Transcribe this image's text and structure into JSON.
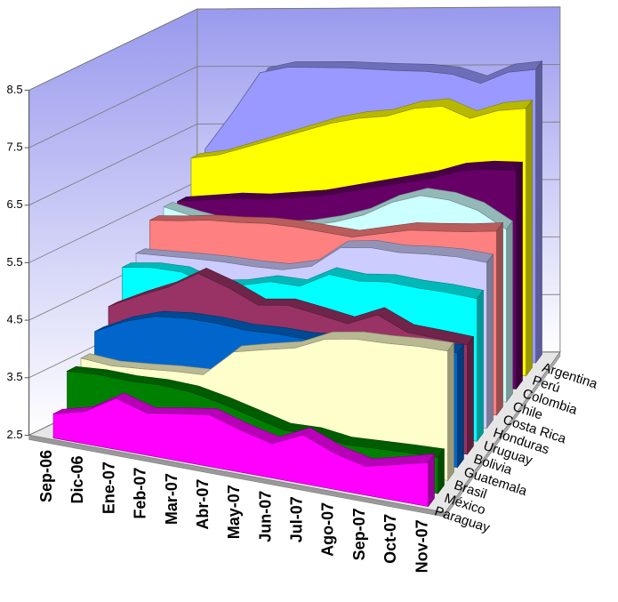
{
  "chart_data": {
    "type": "area",
    "categories": [
      "Sep-06",
      "Dic-06",
      "Ene-07",
      "Feb-07",
      "Mar-07",
      "Abr-07",
      "May-07",
      "Jun-07",
      "Jul-07",
      "Ago-07",
      "Sep-07",
      "Oct-07",
      "Nov-07"
    ],
    "ylim": [
      2.5,
      8.5
    ],
    "yticks": [
      2.5,
      3.5,
      4.5,
      5.5,
      6.5,
      7.5,
      8.5
    ],
    "grid": true,
    "series": [
      {
        "name": "Paraguay",
        "color": "#ff00ff",
        "values": [
          2.92,
          3.06,
          3.39,
          3.23,
          3.32,
          3.4,
          3.23,
          3.1,
          3.35,
          3.13,
          3.0,
          3.13,
          3.27
        ]
      },
      {
        "name": "México",
        "color": "#008000",
        "values": [
          3.54,
          3.57,
          3.55,
          3.57,
          3.54,
          3.43,
          3.29,
          3.15,
          3.16,
          3.08,
          3.1,
          3.12,
          3.13
        ]
      },
      {
        "name": "Brasil",
        "color": "#ffffcc",
        "values": [
          3.64,
          3.59,
          3.62,
          3.66,
          3.68,
          4.16,
          4.28,
          4.39,
          4.63,
          4.71,
          4.72,
          4.75,
          4.75
        ]
      },
      {
        "name": "Guatemala",
        "color": "#0066cc",
        "values": [
          3.98,
          4.23,
          4.39,
          4.43,
          4.42,
          4.37,
          4.38,
          4.36,
          4.39,
          4.42,
          4.44,
          4.47,
          4.49
        ]
      },
      {
        "name": "Bolivia",
        "color": "#993366",
        "values": [
          4.29,
          4.54,
          4.76,
          5.06,
          4.88,
          4.64,
          4.7,
          4.61,
          4.51,
          4.73,
          4.49,
          4.45,
          4.4
        ]
      },
      {
        "name": "Uruguay",
        "color": "#00ffff",
        "values": [
          4.85,
          4.9,
          4.88,
          4.7,
          4.76,
          4.88,
          4.86,
          5.12,
          5.06,
          5.1,
          5.05,
          5.03,
          4.98
        ]
      },
      {
        "name": "Honduras",
        "color": "#ccccff",
        "values": [
          4.97,
          4.97,
          4.97,
          4.96,
          4.93,
          4.92,
          5.03,
          5.4,
          5.45,
          5.41,
          5.43,
          5.43,
          5.38
        ]
      },
      {
        "name": "Costa Rica",
        "color": "#ff8080",
        "values": [
          5.42,
          5.45,
          5.5,
          5.5,
          5.52,
          5.5,
          5.45,
          5.4,
          5.5,
          5.6,
          5.62,
          5.65,
          5.7
        ]
      },
      {
        "name": "Chile",
        "color": "#ccffff",
        "values": [
          5.53,
          5.4,
          5.3,
          5.25,
          5.3,
          5.35,
          5.45,
          5.6,
          5.85,
          6.0,
          5.95,
          5.8,
          5.5
        ]
      },
      {
        "name": "Colombia",
        "color": "#660066",
        "values": [
          5.5,
          5.55,
          5.6,
          5.6,
          5.65,
          5.7,
          5.8,
          5.9,
          6.0,
          6.1,
          6.25,
          6.3,
          6.3
        ]
      },
      {
        "name": "Perú",
        "color": "#ffff00",
        "values": [
          6.13,
          6.2,
          6.35,
          6.5,
          6.65,
          6.8,
          6.9,
          6.95,
          7.1,
          7.15,
          6.95,
          7.1,
          7.15
        ]
      },
      {
        "name": "Argentina",
        "color": "#9999ff",
        "values": [
          6.16,
          6.8,
          7.5,
          7.6,
          7.6,
          7.6,
          7.58,
          7.56,
          7.55,
          7.5,
          7.35,
          7.55,
          7.6
        ]
      }
    ]
  }
}
